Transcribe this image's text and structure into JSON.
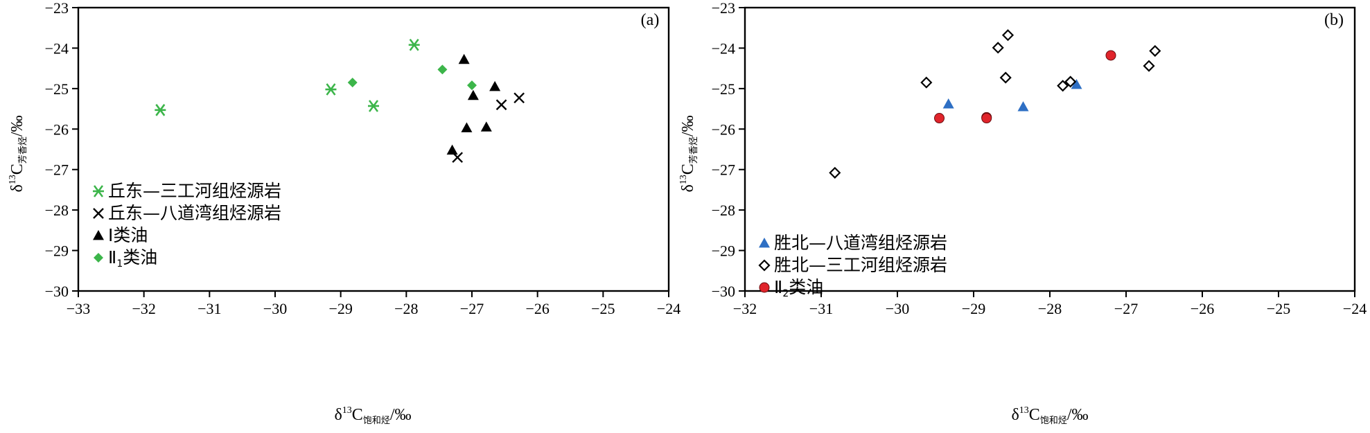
{
  "chart_data": [
    {
      "panel": "(a)",
      "type": "scatter",
      "xlim": [
        -33,
        -24
      ],
      "ylim": [
        -30,
        -23
      ],
      "xticks": [
        -33,
        -32,
        -31,
        -30,
        -29,
        -28,
        -27,
        -26,
        -25,
        -24
      ],
      "yticks": [
        -23,
        -24,
        -25,
        -26,
        -27,
        -28,
        -29,
        -30
      ],
      "xticklabels": [
        "−33",
        "−32",
        "−31",
        "−30",
        "−29",
        "−28",
        "−27",
        "−26",
        "−25",
        "−24"
      ],
      "yticklabels": [
        "−23",
        "−24",
        "−25",
        "−26",
        "−27",
        "−28",
        "−29",
        "−30"
      ],
      "xlabel": {
        "delta": "δ",
        "sup": "13",
        "main": "C",
        "sub": "饱和烃",
        "unit": "/‰"
      },
      "ylabel": {
        "delta": "δ",
        "sup": "13",
        "main": "C",
        "sub": "芳香烃",
        "unit": "/‰"
      },
      "grid": false,
      "legend_position": "bottom-left",
      "series": [
        {
          "name": "丘东—三工河组烃源岩",
          "marker": "asterisk",
          "color": "#3cb54a",
          "points": [
            [
              -31.75,
              -25.53
            ],
            [
              -29.15,
              -25.02
            ],
            [
              -28.5,
              -25.43
            ],
            [
              -27.88,
              -23.92
            ]
          ]
        },
        {
          "name": "丘东—八道湾组烃源岩",
          "marker": "cross",
          "color": "#000000",
          "points": [
            [
              -26.28,
              -25.23
            ],
            [
              -26.55,
              -25.4
            ],
            [
              -27.22,
              -26.7
            ]
          ]
        },
        {
          "name": "Ⅰ类油",
          "marker": "triangle",
          "color": "#000000",
          "points": [
            [
              -27.12,
              -24.28
            ],
            [
              -26.98,
              -25.17
            ],
            [
              -26.65,
              -24.95
            ],
            [
              -27.08,
              -25.97
            ],
            [
              -26.78,
              -25.95
            ],
            [
              -27.3,
              -26.52
            ]
          ]
        },
        {
          "name": "Ⅱ",
          "name_sub": "1",
          "name_tail": "类油",
          "marker": "diamond",
          "color": "#3cb54a",
          "points": [
            [
              -28.82,
              -24.85
            ],
            [
              -27.45,
              -24.53
            ],
            [
              -27.0,
              -24.92
            ]
          ]
        }
      ]
    },
    {
      "panel": "(b)",
      "type": "scatter",
      "xlim": [
        -32,
        -24
      ],
      "ylim": [
        -30,
        -23
      ],
      "xticks": [
        -32,
        -31,
        -30,
        -29,
        -28,
        -27,
        -26,
        -25,
        -24
      ],
      "yticks": [
        -23,
        -24,
        -25,
        -26,
        -27,
        -28,
        -29,
        -30
      ],
      "xticklabels": [
        "−32",
        "−31",
        "−30",
        "−29",
        "−28",
        "−27",
        "−26",
        "−25",
        "−24"
      ],
      "yticklabels": [
        "−23",
        "−24",
        "−25",
        "−26",
        "−27",
        "−28",
        "−29",
        "−30"
      ],
      "xlabel": {
        "delta": "δ",
        "sup": "13",
        "main": "C",
        "sub": "饱和烃",
        "unit": "/‰"
      },
      "ylabel": {
        "delta": "δ",
        "sup": "13",
        "main": "C",
        "sub": "芳香烃",
        "unit": "/‰"
      },
      "grid": false,
      "legend_position": "bottom-left",
      "series": [
        {
          "name": "胜北—八道湾组烃源岩",
          "marker": "triangle",
          "color": "#2e6fc4",
          "points": [
            [
              -29.33,
              -25.38
            ],
            [
              -28.35,
              -25.45
            ],
            [
              -27.65,
              -24.9
            ]
          ]
        },
        {
          "name": "胜北—三工河组烃源岩",
          "marker": "diamond-open",
          "color": "#000000",
          "points": [
            [
              -30.82,
              -27.08
            ],
            [
              -29.62,
              -24.85
            ],
            [
              -28.68,
              -23.99
            ],
            [
              -28.55,
              -23.68
            ],
            [
              -28.58,
              -24.73
            ],
            [
              -27.83,
              -24.93
            ],
            [
              -27.73,
              -24.83
            ],
            [
              -26.7,
              -24.44
            ],
            [
              -26.62,
              -24.07
            ]
          ]
        },
        {
          "name": "Ⅱ",
          "name_sub": "2",
          "name_tail": "类油",
          "marker": "circle",
          "color": "#e0242b",
          "points": [
            [
              -29.45,
              -25.73
            ],
            [
              -28.83,
              -25.71
            ],
            [
              -28.83,
              -25.73
            ],
            [
              -27.2,
              -24.18
            ]
          ]
        }
      ]
    }
  ]
}
